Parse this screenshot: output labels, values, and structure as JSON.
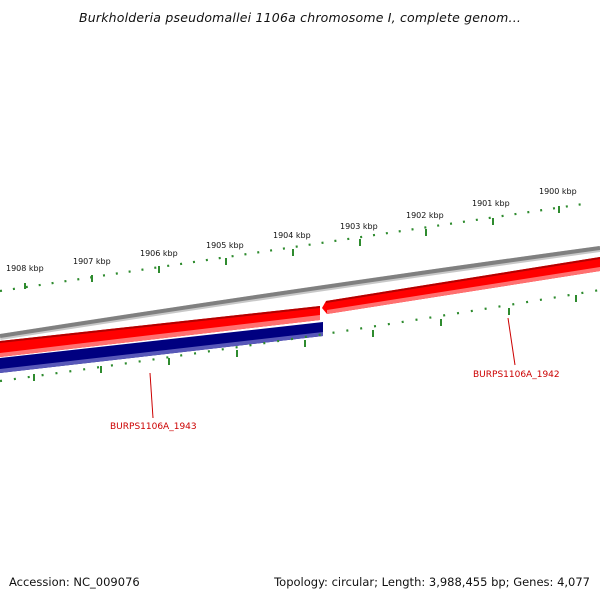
{
  "title": "Burkholderia pseudomallei 1106a chromosome I, complete genom...",
  "tick_labels": [
    "1908 kbp",
    "1907 kbp",
    "1906 kbp",
    "1905 kbp",
    "1904 kbp",
    "1903 kbp",
    "1902 kbp",
    "1901 kbp",
    "1900 kbp"
  ],
  "genes": [
    {
      "name": "BURPS1106A_1943",
      "strand": "reverse"
    },
    {
      "name": "BURPS1106A_1942",
      "strand": "forward"
    }
  ],
  "footer": {
    "accession": "Accession: NC_009076",
    "summary": "Topology: circular; Length: 3,988,455 bp; Genes: 4,077"
  },
  "colors": {
    "backbone": "#808080",
    "forward_gene": "#ff0000",
    "reverse_gene": "#000080",
    "ticks": "#2e8b2e",
    "gene_label": "#cc0000"
  }
}
